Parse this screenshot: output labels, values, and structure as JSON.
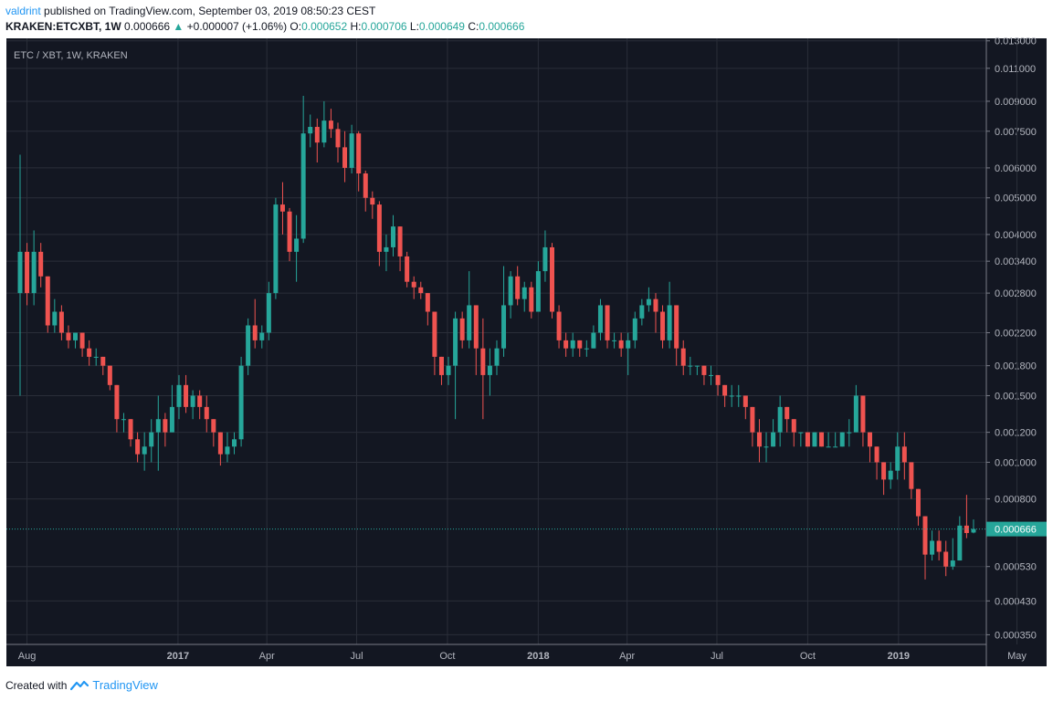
{
  "header": {
    "user": "valdrint",
    "published_text": "published on TradingView.com, September 03, 2019 08:50:23 CEST",
    "symbol": "KRAKEN:ETCXBT, 1W",
    "last": "0.000666",
    "change": "+0.000007 (+1.06%)",
    "open_label": "O:",
    "open": "0.000652",
    "high_label": "H:",
    "high": "0.000706",
    "low_label": "L:",
    "low": "0.000649",
    "close_label": "C:",
    "close": "0.000666"
  },
  "footer": {
    "created_with": "Created with",
    "brand": "TradingView"
  },
  "colors": {
    "up": "#26a69a",
    "down": "#ef5350",
    "background": "#131722",
    "grid": "#2a2e39",
    "axis_text": "#b2b5be",
    "last_price": "#26a69a"
  },
  "chart_data": {
    "type": "candlestick",
    "title": "ETC / XBT, 1W, KRAKEN",
    "scale": "log",
    "ylim": [
      0.00033,
      0.0132
    ],
    "y_ticks": [
      "0.013000",
      "0.011000",
      "0.009000",
      "0.007500",
      "0.006000",
      "0.005000",
      "0.004000",
      "0.003400",
      "0.002800",
      "0.002200",
      "0.001800",
      "0.001500",
      "0.001200",
      "0.001000",
      "0.000800",
      "0.000530",
      "0.000430",
      "0.000350"
    ],
    "x_ticks": [
      {
        "label": "Aug",
        "bold": false,
        "date": "2016-08-01"
      },
      {
        "label": "2017",
        "bold": true,
        "date": "2017-01-01"
      },
      {
        "label": "Apr",
        "bold": false,
        "date": "2017-04-01"
      },
      {
        "label": "Jul",
        "bold": false,
        "date": "2017-07-01"
      },
      {
        "label": "Oct",
        "bold": false,
        "date": "2017-10-01"
      },
      {
        "label": "2018",
        "bold": true,
        "date": "2018-01-01"
      },
      {
        "label": "Apr",
        "bold": false,
        "date": "2018-04-01"
      },
      {
        "label": "Jul",
        "bold": false,
        "date": "2018-07-01"
      },
      {
        "label": "Oct",
        "bold": false,
        "date": "2018-10-01"
      },
      {
        "label": "2019",
        "bold": true,
        "date": "2019-01-01"
      },
      {
        "label": "May",
        "bold": false,
        "date": "2019-05-01"
      },
      {
        "label": "Aug",
        "bold": false,
        "date": "2019-08-01"
      }
    ],
    "last_price": "0.000666",
    "first_week": "2016-07-25",
    "candles": [
      [
        0.0028,
        0.0036,
        0.0065,
        0.0015
      ],
      [
        0.0036,
        0.0028,
        0.0038,
        0.0026
      ],
      [
        0.0028,
        0.0036,
        0.0041,
        0.0026
      ],
      [
        0.0036,
        0.0031,
        0.0038,
        0.0029
      ],
      [
        0.0031,
        0.0023,
        0.0031,
        0.0022
      ],
      [
        0.0023,
        0.0025,
        0.0027,
        0.0022
      ],
      [
        0.0025,
        0.0022,
        0.0026,
        0.0021
      ],
      [
        0.0022,
        0.0021,
        0.0023,
        0.002
      ],
      [
        0.0021,
        0.0022,
        0.0022,
        0.002
      ],
      [
        0.0022,
        0.002,
        0.0022,
        0.0019
      ],
      [
        0.002,
        0.0019,
        0.0021,
        0.0018
      ],
      [
        0.0019,
        0.0019,
        0.002,
        0.0018
      ],
      [
        0.0019,
        0.0018,
        0.0019,
        0.0017
      ],
      [
        0.0018,
        0.0016,
        0.0018,
        0.00155
      ],
      [
        0.0016,
        0.0013,
        0.0016,
        0.0012
      ],
      [
        0.0013,
        0.0013,
        0.00135,
        0.0012
      ],
      [
        0.0013,
        0.00115,
        0.0013,
        0.0011
      ],
      [
        0.00115,
        0.00105,
        0.0012,
        0.001
      ],
      [
        0.00105,
        0.0011,
        0.0012,
        0.00095
      ],
      [
        0.0011,
        0.0012,
        0.0013,
        0.001
      ],
      [
        0.0012,
        0.0013,
        0.0015,
        0.00095
      ],
      [
        0.0013,
        0.0012,
        0.00135,
        0.0011
      ],
      [
        0.0012,
        0.0014,
        0.0016,
        0.0012
      ],
      [
        0.0014,
        0.0016,
        0.0017,
        0.0013
      ],
      [
        0.0016,
        0.0014,
        0.0017,
        0.00135
      ],
      [
        0.0014,
        0.0015,
        0.00155,
        0.0013
      ],
      [
        0.0015,
        0.0014,
        0.00155,
        0.0013
      ],
      [
        0.0014,
        0.0013,
        0.0015,
        0.0012
      ],
      [
        0.0013,
        0.0012,
        0.0013,
        0.0011
      ],
      [
        0.0012,
        0.00105,
        0.0012,
        0.00098
      ],
      [
        0.00105,
        0.0011,
        0.0012,
        0.001
      ],
      [
        0.0011,
        0.00115,
        0.0012,
        0.00105
      ],
      [
        0.00115,
        0.0018,
        0.0019,
        0.0011
      ],
      [
        0.0018,
        0.0023,
        0.0024,
        0.0017
      ],
      [
        0.0023,
        0.0021,
        0.0027,
        0.002
      ],
      [
        0.0021,
        0.0022,
        0.0023,
        0.002
      ],
      [
        0.0022,
        0.0028,
        0.003,
        0.0021
      ],
      [
        0.0028,
        0.0048,
        0.005,
        0.0027
      ],
      [
        0.0048,
        0.0046,
        0.0055,
        0.004
      ],
      [
        0.0046,
        0.0036,
        0.0047,
        0.0034
      ],
      [
        0.0036,
        0.0039,
        0.0045,
        0.003
      ],
      [
        0.0039,
        0.0074,
        0.0093,
        0.0038
      ],
      [
        0.0074,
        0.0077,
        0.0083,
        0.0068
      ],
      [
        0.0077,
        0.007,
        0.0081,
        0.0062
      ],
      [
        0.007,
        0.008,
        0.009,
        0.0068
      ],
      [
        0.008,
        0.0076,
        0.0086,
        0.0072
      ],
      [
        0.0076,
        0.0068,
        0.0079,
        0.0062
      ],
      [
        0.0068,
        0.006,
        0.0075,
        0.0055
      ],
      [
        0.006,
        0.0074,
        0.0078,
        0.0058
      ],
      [
        0.0074,
        0.0058,
        0.0075,
        0.0052
      ],
      [
        0.0058,
        0.005,
        0.0059,
        0.0046
      ],
      [
        0.005,
        0.0048,
        0.0052,
        0.0044
      ],
      [
        0.0048,
        0.0036,
        0.0049,
        0.0033
      ],
      [
        0.0036,
        0.0037,
        0.004,
        0.0032
      ],
      [
        0.0037,
        0.0042,
        0.0045,
        0.0035
      ],
      [
        0.0042,
        0.0035,
        0.0042,
        0.0032
      ],
      [
        0.0035,
        0.003,
        0.0036,
        0.0029
      ],
      [
        0.003,
        0.0029,
        0.0031,
        0.0027
      ],
      [
        0.0029,
        0.0028,
        0.003,
        0.0027
      ],
      [
        0.0028,
        0.0025,
        0.0028,
        0.0023
      ],
      [
        0.0025,
        0.0019,
        0.0025,
        0.0017
      ],
      [
        0.0019,
        0.0017,
        0.0019,
        0.0016
      ],
      [
        0.0017,
        0.0018,
        0.0019,
        0.0016
      ],
      [
        0.0018,
        0.0024,
        0.0025,
        0.0013
      ],
      [
        0.0024,
        0.0021,
        0.0025,
        0.002
      ],
      [
        0.0021,
        0.0026,
        0.0032,
        0.002
      ],
      [
        0.0026,
        0.002,
        0.0026,
        0.0017
      ],
      [
        0.002,
        0.0017,
        0.0024,
        0.0013
      ],
      [
        0.0017,
        0.0018,
        0.002,
        0.0015
      ],
      [
        0.0018,
        0.002,
        0.0021,
        0.0017
      ],
      [
        0.002,
        0.0026,
        0.0033,
        0.0019
      ],
      [
        0.0026,
        0.0031,
        0.0032,
        0.0024
      ],
      [
        0.0031,
        0.0027,
        0.0033,
        0.0026
      ],
      [
        0.0027,
        0.0029,
        0.003,
        0.0025
      ],
      [
        0.0029,
        0.0025,
        0.003,
        0.0024
      ],
      [
        0.0025,
        0.0032,
        0.0034,
        0.0025
      ],
      [
        0.0032,
        0.0037,
        0.0041,
        0.003
      ],
      [
        0.0037,
        0.0025,
        0.0038,
        0.0024
      ],
      [
        0.0025,
        0.0021,
        0.0026,
        0.002
      ],
      [
        0.0021,
        0.002,
        0.0022,
        0.0019
      ],
      [
        0.002,
        0.0021,
        0.0022,
        0.0019
      ],
      [
        0.0021,
        0.002,
        0.0021,
        0.0019
      ],
      [
        0.002,
        0.002,
        0.0021,
        0.0019
      ],
      [
        0.002,
        0.0022,
        0.0023,
        0.002
      ],
      [
        0.0022,
        0.0026,
        0.0027,
        0.0021
      ],
      [
        0.0026,
        0.0021,
        0.0026,
        0.002
      ],
      [
        0.0021,
        0.0021,
        0.0022,
        0.002
      ],
      [
        0.0021,
        0.002,
        0.0022,
        0.0019
      ],
      [
        0.002,
        0.0021,
        0.0022,
        0.0017
      ],
      [
        0.0021,
        0.0024,
        0.0025,
        0.002
      ],
      [
        0.0024,
        0.0026,
        0.0027,
        0.0023
      ],
      [
        0.0026,
        0.0027,
        0.0029,
        0.0025
      ],
      [
        0.0027,
        0.0025,
        0.0028,
        0.0022
      ],
      [
        0.0025,
        0.0021,
        0.0026,
        0.002
      ],
      [
        0.0021,
        0.0026,
        0.003,
        0.002
      ],
      [
        0.0026,
        0.002,
        0.0026,
        0.0018
      ],
      [
        0.002,
        0.0018,
        0.0021,
        0.0017
      ],
      [
        0.0018,
        0.0018,
        0.0019,
        0.0017
      ],
      [
        0.0018,
        0.0018,
        0.0018,
        0.0017
      ],
      [
        0.0018,
        0.0017,
        0.0018,
        0.0016
      ],
      [
        0.0017,
        0.0017,
        0.0018,
        0.0016
      ],
      [
        0.0017,
        0.0016,
        0.0017,
        0.0015
      ],
      [
        0.0016,
        0.0015,
        0.0016,
        0.0014
      ],
      [
        0.0015,
        0.0015,
        0.0016,
        0.0014
      ],
      [
        0.0015,
        0.0015,
        0.0016,
        0.0014
      ],
      [
        0.0015,
        0.0014,
        0.0015,
        0.0013
      ],
      [
        0.0014,
        0.0012,
        0.0014,
        0.0011
      ],
      [
        0.0012,
        0.0011,
        0.0013,
        0.001
      ],
      [
        0.0011,
        0.0011,
        0.0012,
        0.001
      ],
      [
        0.0011,
        0.0012,
        0.0013,
        0.0011
      ],
      [
        0.0012,
        0.0014,
        0.0015,
        0.0011
      ],
      [
        0.0014,
        0.0013,
        0.0014,
        0.0012
      ],
      [
        0.0013,
        0.0012,
        0.0013,
        0.0011
      ],
      [
        0.0012,
        0.0012,
        0.0012,
        0.0011
      ],
      [
        0.0012,
        0.0011,
        0.0012,
        0.0011
      ],
      [
        0.0011,
        0.0012,
        0.0012,
        0.0011
      ],
      [
        0.0012,
        0.0011,
        0.0012,
        0.0011
      ],
      [
        0.0011,
        0.0011,
        0.0012,
        0.0011
      ],
      [
        0.0011,
        0.0011,
        0.0012,
        0.0011
      ],
      [
        0.0011,
        0.0012,
        0.0012,
        0.0011
      ],
      [
        0.0012,
        0.0012,
        0.0013,
        0.0011
      ],
      [
        0.0012,
        0.0015,
        0.0016,
        0.0012
      ],
      [
        0.0015,
        0.0012,
        0.0015,
        0.0011
      ],
      [
        0.0012,
        0.0011,
        0.0012,
        0.001
      ],
      [
        0.0011,
        0.001,
        0.0011,
        0.0009
      ],
      [
        0.001,
        0.0009,
        0.001,
        0.00082
      ],
      [
        0.0009,
        0.00095,
        0.001,
        0.00085
      ],
      [
        0.00095,
        0.0011,
        0.0012,
        0.0009
      ],
      [
        0.0011,
        0.001,
        0.0012,
        0.0009
      ],
      [
        0.001,
        0.00085,
        0.001,
        0.0008
      ],
      [
        0.00085,
        0.00072,
        0.00085,
        0.00068
      ],
      [
        0.00072,
        0.00057,
        0.00072,
        0.00049
      ],
      [
        0.00057,
        0.00062,
        0.00066,
        0.00055
      ],
      [
        0.00062,
        0.00058,
        0.00066,
        0.00055
      ],
      [
        0.00058,
        0.00053,
        0.00062,
        0.0005
      ],
      [
        0.00053,
        0.00055,
        0.00063,
        0.00052
      ],
      [
        0.00055,
        0.00068,
        0.00072,
        0.00055
      ],
      [
        0.00068,
        0.00065,
        0.00082,
        0.00063
      ],
      [
        0.000652,
        0.000666,
        0.000706,
        0.000649
      ]
    ]
  }
}
